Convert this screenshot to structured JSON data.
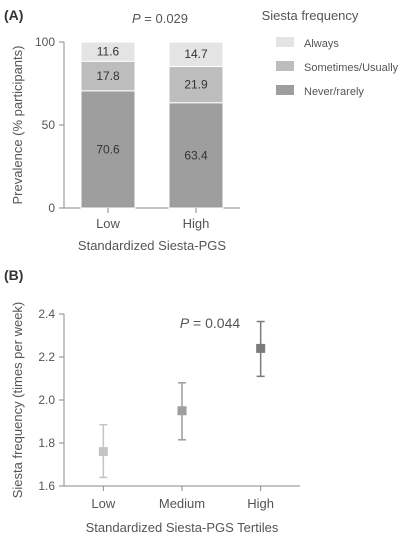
{
  "chart_data": [
    {
      "panel": "(A)",
      "type": "bar",
      "stacked": true,
      "annotation": "P = 0.029",
      "annotation_p": "P",
      "annotation_value": " = 0.029",
      "xlabel": "Standardized Siesta-PGS",
      "ylabel": "Prevalence (% participants)",
      "categories": [
        "Low",
        "High"
      ],
      "ylim": [
        0,
        100
      ],
      "yticks": [
        "0",
        "50",
        "100"
      ],
      "legend_title": "Siesta frequency",
      "legend_position": "right",
      "series": [
        {
          "name": "Never/rarely",
          "values": [
            70.6,
            63.4
          ],
          "labels": [
            "70.6",
            "63.4"
          ],
          "color": "#9e9e9e"
        },
        {
          "name": "Sometimes/Usually",
          "values": [
            17.8,
            21.9
          ],
          "labels": [
            "17.8",
            "21.9"
          ],
          "color": "#bdbdbd"
        },
        {
          "name": "Always",
          "values": [
            11.6,
            14.7
          ],
          "labels": [
            "11.6",
            "14.7"
          ],
          "color": "#e4e4e4"
        }
      ]
    },
    {
      "panel": "(B)",
      "type": "scatter",
      "error_bars": true,
      "annotation": "P = 0.044",
      "annotation_p": "P",
      "annotation_value": " = 0.044",
      "xlabel": "Standardized Siesta-PGS Tertiles",
      "ylabel": "Siesta frequency (times per week)",
      "categories": [
        "Low",
        "Medium",
        "High"
      ],
      "ylim": [
        1.6,
        2.4
      ],
      "yticks": [
        "1.6",
        "1.8",
        "2.0",
        "2.2",
        "2.4"
      ],
      "points": [
        {
          "category": "Low",
          "y": 1.76,
          "lower": 1.64,
          "upper": 1.885,
          "color": "#c4c4c4"
        },
        {
          "category": "Medium",
          "y": 1.95,
          "lower": 1.815,
          "upper": 2.08,
          "color": "#9e9e9e"
        },
        {
          "category": "High",
          "y": 2.24,
          "lower": 2.11,
          "upper": 2.365,
          "color": "#7a7a7a"
        }
      ]
    }
  ]
}
